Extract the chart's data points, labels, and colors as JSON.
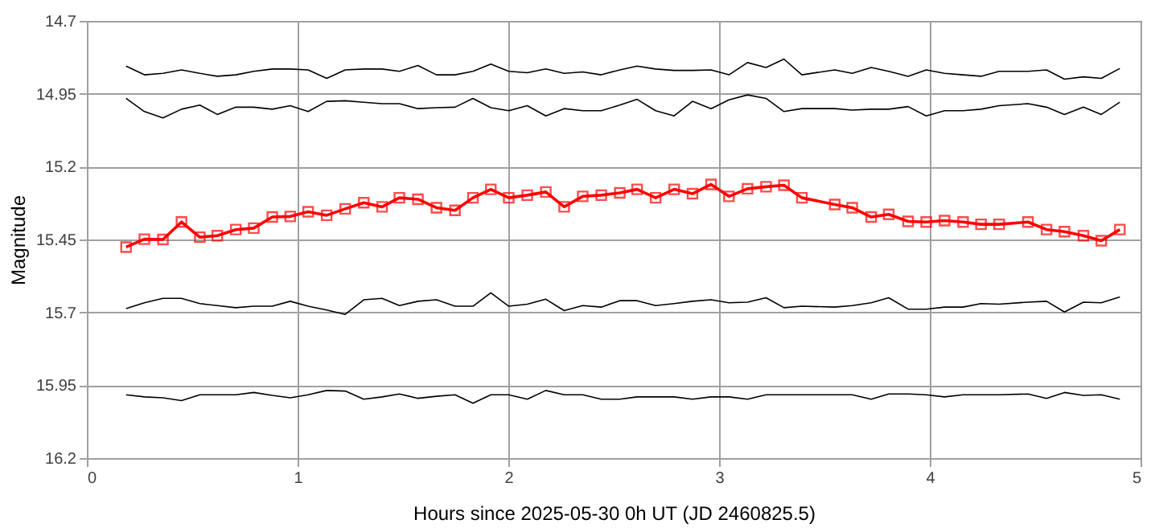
{
  "chart_data": {
    "type": "line",
    "xlabel": "Hours since 2025-05-30 0h UT (JD 2460825.5)",
    "ylabel": "Magnitude",
    "x": [
      0.186,
      0.273,
      0.361,
      0.449,
      0.536,
      0.619,
      0.707,
      0.792,
      0.88,
      0.965,
      1.05,
      1.138,
      1.226,
      1.314,
      1.401,
      1.483,
      1.571,
      1.659,
      1.747,
      1.832,
      1.917,
      2.002,
      2.09,
      2.178,
      2.265,
      2.353,
      2.441,
      2.529,
      2.611,
      2.699,
      2.787,
      2.874,
      2.962,
      3.047,
      3.135,
      3.223,
      3.308,
      3.393,
      3.549,
      3.632,
      3.722,
      3.805,
      3.897,
      3.983,
      4.07,
      4.158,
      4.243,
      4.329,
      4.466,
      4.554,
      4.639,
      4.729,
      4.814,
      4.902
    ],
    "series": [
      {
        "color": "#000000",
        "marker": "none",
        "values": [
          14.855,
          14.885,
          14.88,
          14.868,
          14.88,
          14.89,
          14.885,
          14.873,
          14.865,
          14.865,
          14.868,
          14.897,
          14.868,
          14.865,
          14.865,
          14.873,
          14.853,
          14.885,
          14.885,
          14.873,
          14.848,
          14.873,
          14.878,
          14.865,
          14.88,
          14.875,
          14.885,
          14.868,
          14.855,
          14.865,
          14.87,
          14.87,
          14.868,
          14.885,
          14.843,
          14.86,
          14.831,
          14.885,
          14.868,
          14.88,
          14.86,
          14.873,
          14.89,
          14.868,
          14.88,
          14.885,
          14.89,
          14.873,
          14.873,
          14.868,
          14.9,
          14.892,
          14.897,
          14.863
        ]
      },
      {
        "color": "#000000",
        "marker": "none",
        "values": [
          14.966,
          15.011,
          15.033,
          15.003,
          14.989,
          15.021,
          14.996,
          14.996,
          15.003,
          14.991,
          15.011,
          14.976,
          14.974,
          14.979,
          14.984,
          14.984,
          15.001,
          14.998,
          14.996,
          14.966,
          14.998,
          15.008,
          14.991,
          15.026,
          15.001,
          15.008,
          15.008,
          14.989,
          14.969,
          15.008,
          15.026,
          14.976,
          15.001,
          14.971,
          14.954,
          14.966,
          15.011,
          15.001,
          15.001,
          15.006,
          15.003,
          15.003,
          14.994,
          15.026,
          15.008,
          15.008,
          15.003,
          14.991,
          14.984,
          14.996,
          15.021,
          14.996,
          15.021,
          14.979
        ]
      },
      {
        "color": "#ff0000",
        "marker": "square",
        "values": [
          15.476,
          15.449,
          15.45,
          15.39,
          15.442,
          15.437,
          15.416,
          15.411,
          15.373,
          15.371,
          15.355,
          15.367,
          15.345,
          15.324,
          15.338,
          15.307,
          15.312,
          15.341,
          15.35,
          15.307,
          15.278,
          15.307,
          15.298,
          15.287,
          15.338,
          15.302,
          15.298,
          15.29,
          15.278,
          15.307,
          15.278,
          15.293,
          15.261,
          15.302,
          15.276,
          15.269,
          15.264,
          15.307,
          15.33,
          15.341,
          15.373,
          15.364,
          15.388,
          15.39,
          15.385,
          15.39,
          15.398,
          15.398,
          15.39,
          15.416,
          15.423,
          15.437,
          15.454,
          15.416
        ]
      },
      {
        "color": "#000000",
        "marker": "none",
        "values": [
          15.687,
          15.667,
          15.652,
          15.652,
          15.67,
          15.677,
          15.684,
          15.679,
          15.679,
          15.662,
          15.679,
          15.692,
          15.707,
          15.657,
          15.652,
          15.677,
          15.662,
          15.657,
          15.679,
          15.679,
          15.633,
          15.679,
          15.672,
          15.655,
          15.694,
          15.677,
          15.682,
          15.66,
          15.66,
          15.677,
          15.67,
          15.662,
          15.657,
          15.667,
          15.665,
          15.65,
          15.684,
          15.679,
          15.682,
          15.677,
          15.667,
          15.65,
          15.689,
          15.689,
          15.682,
          15.682,
          15.67,
          15.672,
          15.665,
          15.662,
          15.699,
          15.665,
          15.667,
          15.647
        ]
      },
      {
        "color": "#000000",
        "marker": "none",
        "values": [
          15.983,
          15.99,
          15.993,
          16.003,
          15.983,
          15.983,
          15.983,
          15.975,
          15.985,
          15.993,
          15.983,
          15.968,
          15.97,
          15.998,
          15.99,
          15.98,
          15.995,
          15.988,
          15.983,
          16.012,
          15.983,
          15.983,
          15.998,
          15.968,
          15.983,
          15.983,
          15.998,
          15.998,
          15.99,
          15.99,
          15.99,
          15.998,
          15.99,
          15.99,
          15.998,
          15.983,
          15.983,
          15.983,
          15.983,
          15.983,
          15.998,
          15.98,
          15.98,
          15.983,
          15.99,
          15.983,
          15.983,
          15.983,
          15.98,
          15.995,
          15.975,
          15.985,
          15.983,
          15.998
        ]
      }
    ],
    "xlim": [
      0,
      5
    ],
    "xticks": [
      0,
      1,
      2,
      3,
      4,
      5
    ],
    "ylim": [
      16.2,
      14.7
    ],
    "yticks": [
      14.7,
      14.95,
      15.2,
      15.45,
      15.7,
      15.95,
      16.2
    ],
    "grid": true
  }
}
